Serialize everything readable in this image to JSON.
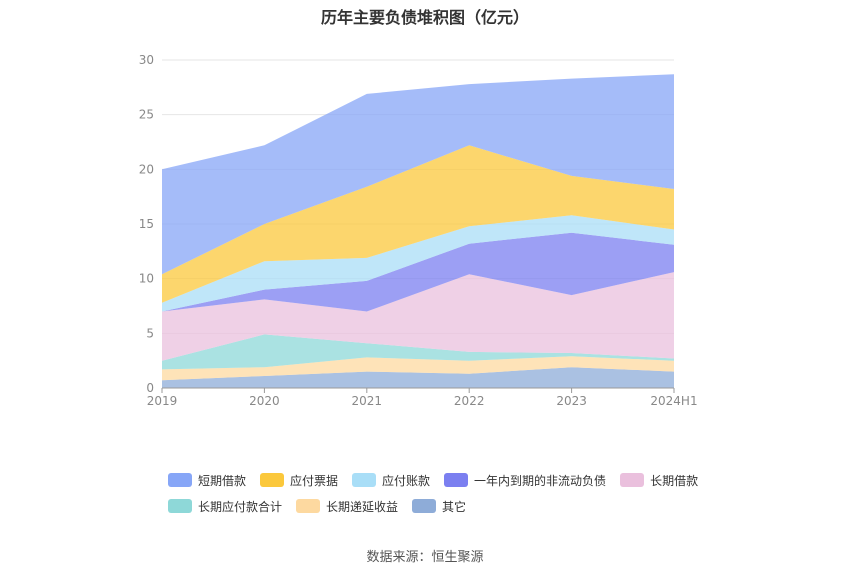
{
  "title": "历年主要负债堆积图（亿元）",
  "source": "数据来源：恒生聚源",
  "chart_data": {
    "type": "area",
    "stacked": true,
    "categories": [
      "2019",
      "2020",
      "2021",
      "2022",
      "2023",
      "2024H1"
    ],
    "ylim": [
      0,
      30
    ],
    "yticks": [
      0,
      5,
      10,
      15,
      20,
      25,
      30
    ],
    "grid": true,
    "legend_position": "bottom",
    "series": [
      {
        "name": "其它",
        "color": "#8eacd8",
        "values": [
          0.7,
          1.1,
          1.5,
          1.3,
          1.9,
          1.5
        ]
      },
      {
        "name": "长期递延收益",
        "color": "#fdd9a0",
        "values": [
          1.0,
          0.8,
          1.3,
          1.2,
          1.0,
          1.0
        ]
      },
      {
        "name": "长期应付款合计",
        "color": "#8ed8d8",
        "values": [
          0.8,
          3.0,
          1.3,
          0.8,
          0.3,
          0.2
        ]
      },
      {
        "name": "长期借款",
        "color": "#eac0dd",
        "values": [
          4.5,
          3.2,
          2.9,
          7.1,
          5.3,
          7.9
        ]
      },
      {
        "name": "一年内到期的非流动负债",
        "color": "#7b7ff0",
        "values": [
          0.0,
          0.9,
          2.8,
          2.8,
          5.7,
          2.5
        ]
      },
      {
        "name": "应付账款",
        "color": "#a9def7",
        "values": [
          0.8,
          2.6,
          2.1,
          1.6,
          1.6,
          1.4
        ]
      },
      {
        "name": "应付票据",
        "color": "#fbc83c",
        "values": [
          2.6,
          3.4,
          6.5,
          7.4,
          3.6,
          3.7
        ]
      },
      {
        "name": "短期借款",
        "color": "#87a6f7",
        "values": [
          9.6,
          7.2,
          8.5,
          5.6,
          8.9,
          10.5
        ]
      }
    ],
    "legend_order": [
      "短期借款",
      "应付票据",
      "应付账款",
      "一年内到期的非流动负债",
      "长期借款",
      "长期应付款合计",
      "长期递延收益",
      "其它"
    ]
  }
}
